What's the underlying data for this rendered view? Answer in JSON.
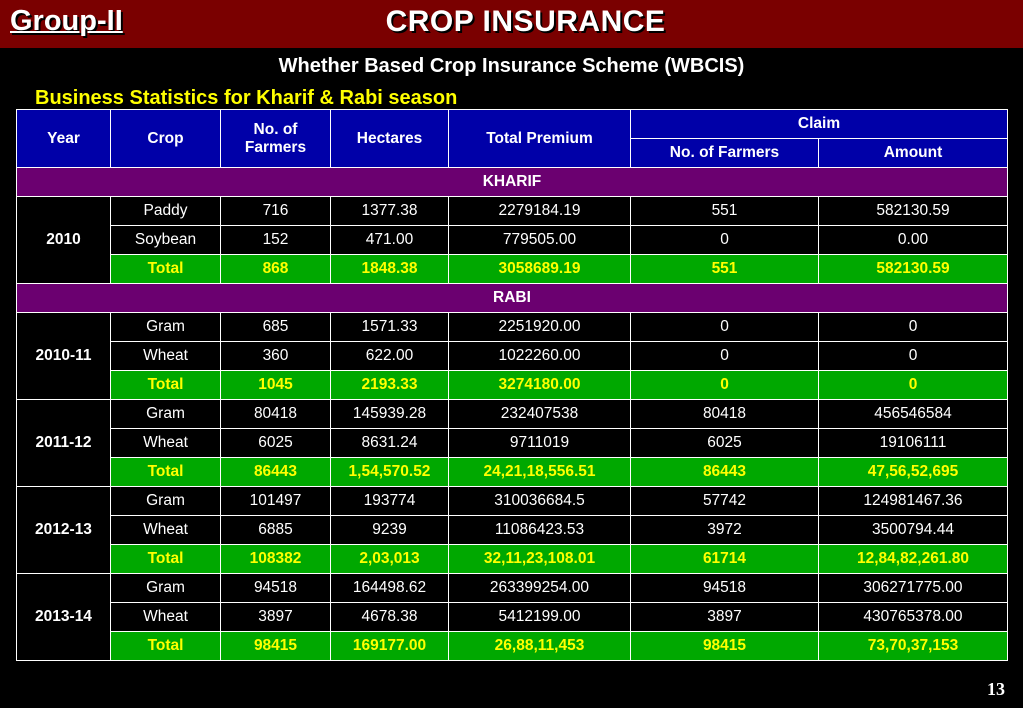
{
  "header": {
    "group": "Group-II",
    "title": "CROP INSURANCE",
    "subtitle": "Whether Based Crop Insurance Scheme (WBCIS)",
    "section_title": "Business Statistics for Kharif & Rabi season",
    "bar_color": "#7a0000"
  },
  "table": {
    "columns": {
      "year": "Year",
      "crop": "Crop",
      "farmers": "No. of Farmers",
      "hectares": "Hectares",
      "premium": "Total Premium",
      "claim": "Claim",
      "claim_farmers": "No. of Farmers",
      "claim_amount": "Amount"
    },
    "kharif_label": "KHARIF",
    "rabi_label": "RABI",
    "kharif": [
      {
        "year": "2010",
        "rows": [
          {
            "crop": "Paddy",
            "farmers": "716",
            "hectares": "1377.38",
            "premium": "2279184.19",
            "claim_farmers": "551",
            "claim_amount": "582130.59"
          },
          {
            "crop": "Soybean",
            "farmers": "152",
            "hectares": "471.00",
            "premium": "779505.00",
            "claim_farmers": "0",
            "claim_amount": "0.00"
          },
          {
            "crop": "Total",
            "farmers": "868",
            "hectares": "1848.38",
            "premium": "3058689.19",
            "claim_farmers": "551",
            "claim_amount": "582130.59"
          }
        ]
      }
    ],
    "rabi": [
      {
        "year": "2010-11",
        "rows": [
          {
            "crop": "Gram",
            "farmers": "685",
            "hectares": "1571.33",
            "premium": "2251920.00",
            "claim_farmers": "0",
            "claim_amount": "0"
          },
          {
            "crop": "Wheat",
            "farmers": "360",
            "hectares": "622.00",
            "premium": "1022260.00",
            "claim_farmers": "0",
            "claim_amount": "0"
          },
          {
            "crop": "Total",
            "farmers": "1045",
            "hectares": "2193.33",
            "premium": "3274180.00",
            "claim_farmers": "0",
            "claim_amount": "0"
          }
        ]
      },
      {
        "year": "2011-12",
        "rows": [
          {
            "crop": "Gram",
            "farmers": "80418",
            "hectares": "145939.28",
            "premium": "232407538",
            "claim_farmers": "80418",
            "claim_amount": "456546584"
          },
          {
            "crop": "Wheat",
            "farmers": "6025",
            "hectares": "8631.24",
            "premium": "9711019",
            "claim_farmers": "6025",
            "claim_amount": "19106111"
          },
          {
            "crop": "Total",
            "farmers": "86443",
            "hectares": "1,54,570.52",
            "premium": "24,21,18,556.51",
            "claim_farmers": "86443",
            "claim_amount": "47,56,52,695"
          }
        ]
      },
      {
        "year": "2012-13",
        "rows": [
          {
            "crop": "Gram",
            "farmers": "101497",
            "hectares": "193774",
            "premium": "310036684.5",
            "claim_farmers": "57742",
            "claim_amount": "124981467.36"
          },
          {
            "crop": "Wheat",
            "farmers": "6885",
            "hectares": "9239",
            "premium": "11086423.53",
            "claim_farmers": "3972",
            "claim_amount": "3500794.44"
          },
          {
            "crop": "Total",
            "farmers": "108382",
            "hectares": "2,03,013",
            "premium": "32,11,23,108.01",
            "claim_farmers": "61714",
            "claim_amount": "12,84,82,261.80"
          }
        ]
      },
      {
        "year": "2013-14",
        "rows": [
          {
            "crop": "Gram",
            "farmers": "94518",
            "hectares": "164498.62",
            "premium": "263399254.00",
            "claim_farmers": "94518",
            "claim_amount": "306271775.00"
          },
          {
            "crop": "Wheat",
            "farmers": "3897",
            "hectares": "4678.38",
            "premium": "5412199.00",
            "claim_farmers": "3897",
            "claim_amount": "430765378.00"
          },
          {
            "crop": "Total",
            "farmers": "98415",
            "hectares": "169177.00",
            "premium": "26,88,11,453",
            "claim_farmers": "98415",
            "claim_amount": "73,70,37,153"
          }
        ]
      }
    ],
    "colors": {
      "header": "#0000a8",
      "season": "#6b0070",
      "total_row": "#00a800",
      "total_text": "#ffff00"
    }
  },
  "footer": {
    "page_number": "13"
  }
}
